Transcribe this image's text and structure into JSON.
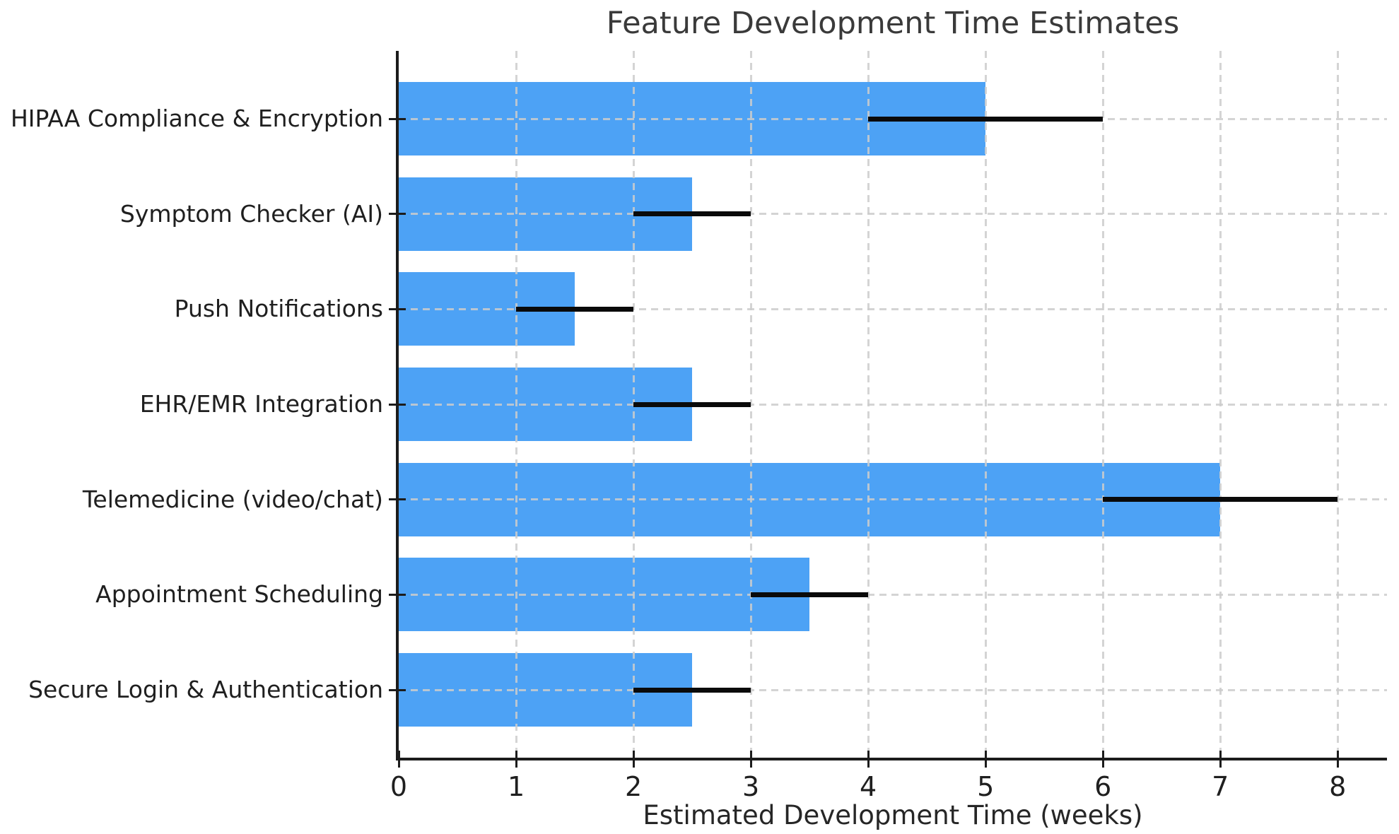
{
  "chart_data": {
    "type": "bar",
    "orientation": "horizontal",
    "title": "Feature Development Time Estimates",
    "xlabel": "Estimated Development Time (weeks)",
    "ylabel": "",
    "categories": [
      "HIPAA Compliance & Encryption",
      "Symptom Checker (AI)",
      "Push Notifications",
      "EHR/EMR Integration",
      "Telemedicine (video/chat)",
      "Appointment Scheduling",
      "Secure Login & Authentication"
    ],
    "values": [
      5,
      2.5,
      1.5,
      2.5,
      7,
      3.5,
      2.5
    ],
    "errors": [
      1,
      0.5,
      0.5,
      0.5,
      1,
      0.5,
      0.5
    ],
    "error_ranges": [
      [
        4,
        6
      ],
      [
        2,
        3
      ],
      [
        1,
        2
      ],
      [
        2,
        3
      ],
      [
        6,
        8
      ],
      [
        3,
        4
      ],
      [
        2,
        3
      ]
    ],
    "x_ticks": [
      "0",
      "1",
      "2",
      "3",
      "4",
      "5",
      "6",
      "7",
      "8"
    ],
    "xlim": [
      0,
      8.42
    ],
    "grid": "dashed",
    "legend": "none",
    "colors": {
      "bar": "#4DA2F5",
      "error_bar": "#0a0a0a",
      "grid": "#cccccc",
      "axis": "#1c1c1c",
      "tick_text": "#1f1f1f",
      "title_text": "#3a3a3a"
    }
  }
}
